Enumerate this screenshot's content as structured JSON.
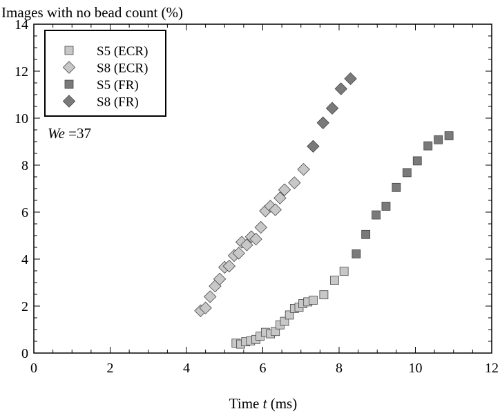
{
  "chart_data": {
    "type": "scatter",
    "title": "Images with no bead count (%)",
    "xlabel_pre": "Time ",
    "xlabel_var": "t",
    "xlabel_post": " (ms)",
    "annotation_var": "We",
    "annotation_val": " =37",
    "xlim": [
      0,
      12
    ],
    "ylim": [
      0,
      14
    ],
    "xticks": [
      0,
      2,
      4,
      6,
      8,
      10,
      12
    ],
    "yticks": [
      0,
      2,
      4,
      6,
      8,
      10,
      12,
      14
    ],
    "legend_placement": "top-left",
    "grid": false,
    "series": [
      {
        "name": "S5 (ECR)",
        "marker": "square",
        "color": "#c8c8c8",
        "points": [
          [
            5.3,
            0.42
          ],
          [
            5.42,
            0.38
          ],
          [
            5.55,
            0.48
          ],
          [
            5.68,
            0.52
          ],
          [
            5.82,
            0.58
          ],
          [
            5.93,
            0.72
          ],
          [
            6.07,
            0.88
          ],
          [
            6.2,
            0.82
          ],
          [
            6.33,
            0.92
          ],
          [
            6.45,
            1.2
          ],
          [
            6.57,
            1.35
          ],
          [
            6.7,
            1.62
          ],
          [
            6.83,
            1.9
          ],
          [
            6.95,
            1.95
          ],
          [
            7.05,
            2.1
          ],
          [
            7.18,
            2.18
          ],
          [
            7.32,
            2.25
          ],
          [
            7.6,
            2.48
          ],
          [
            7.88,
            3.1
          ],
          [
            8.13,
            3.48
          ]
        ]
      },
      {
        "name": "S8 (ECR)",
        "marker": "diamond",
        "color": "#c8c8c8",
        "points": [
          [
            4.37,
            1.8
          ],
          [
            4.5,
            1.92
          ],
          [
            4.62,
            2.4
          ],
          [
            4.75,
            2.85
          ],
          [
            4.87,
            3.15
          ],
          [
            5.0,
            3.65
          ],
          [
            5.12,
            3.7
          ],
          [
            5.25,
            4.15
          ],
          [
            5.37,
            4.25
          ],
          [
            5.45,
            4.72
          ],
          [
            5.58,
            4.6
          ],
          [
            5.7,
            4.95
          ],
          [
            5.82,
            4.85
          ],
          [
            5.95,
            5.35
          ],
          [
            6.07,
            6.05
          ],
          [
            6.2,
            6.25
          ],
          [
            6.33,
            6.1
          ],
          [
            6.45,
            6.6
          ],
          [
            6.57,
            6.95
          ],
          [
            6.83,
            7.25
          ],
          [
            7.07,
            7.82
          ]
        ]
      },
      {
        "name": "S5 (FR)",
        "marker": "square",
        "color": "#7a7a7a",
        "points": [
          [
            8.45,
            4.22
          ],
          [
            8.7,
            5.05
          ],
          [
            8.97,
            5.88
          ],
          [
            9.23,
            6.25
          ],
          [
            9.5,
            7.05
          ],
          [
            9.78,
            7.68
          ],
          [
            10.05,
            8.18
          ],
          [
            10.33,
            8.82
          ],
          [
            10.6,
            9.08
          ],
          [
            10.88,
            9.25
          ]
        ]
      },
      {
        "name": "S8 (FR)",
        "marker": "diamond",
        "color": "#7a7a7a",
        "points": [
          [
            7.32,
            8.8
          ],
          [
            7.58,
            9.8
          ],
          [
            7.82,
            10.42
          ],
          [
            8.05,
            11.25
          ],
          [
            8.3,
            11.68
          ]
        ]
      }
    ]
  }
}
